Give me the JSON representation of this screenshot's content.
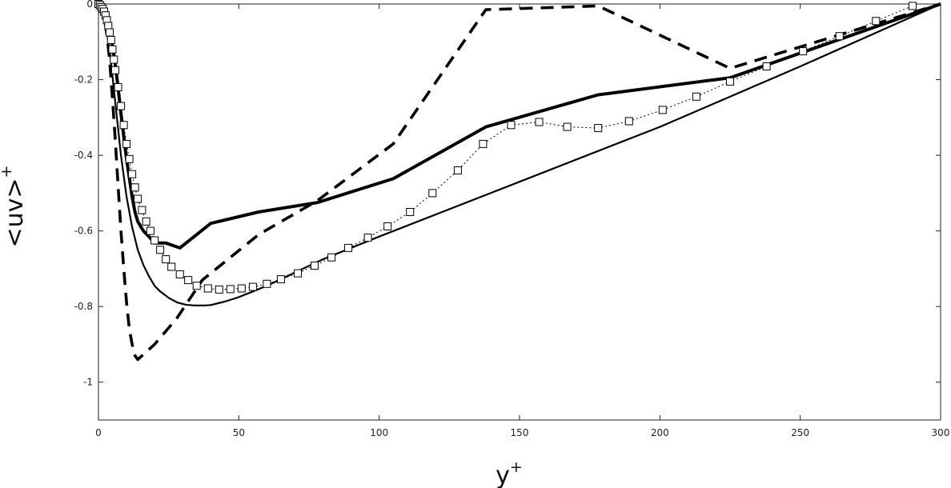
{
  "chart_data": {
    "type": "line",
    "xlabel": "y",
    "xlabel_sup": "+",
    "ylabel": "<uv>",
    "ylabel_sup": "+",
    "xlim": [
      0,
      300
    ],
    "ylim": [
      -1.1,
      0
    ],
    "xticks": [
      0,
      50,
      100,
      150,
      200,
      250,
      300
    ],
    "yticks": [
      0,
      -0.2,
      -0.4,
      -0.6,
      -0.8,
      -1
    ],
    "xtick_labels": [
      "0",
      "50",
      "100",
      "150",
      "200",
      "250",
      "300"
    ],
    "ytick_labels": [
      "0",
      "-0.2",
      "-0.4",
      "-0.6",
      "-0.8",
      "-1"
    ],
    "grid": false,
    "series": [
      {
        "style": "thin-solid",
        "x": [
          0,
          2,
          4,
          6,
          8,
          10,
          12,
          14,
          16,
          18,
          20,
          22,
          25,
          28,
          31,
          34,
          36,
          38,
          40,
          45,
          50,
          55,
          60,
          70,
          80,
          100,
          150,
          200,
          250,
          300
        ],
        "y": [
          0,
          -0.03,
          -0.12,
          -0.26,
          -0.4,
          -0.51,
          -0.59,
          -0.65,
          -0.69,
          -0.72,
          -0.745,
          -0.76,
          -0.777,
          -0.789,
          -0.795,
          -0.797,
          -0.797,
          -0.797,
          -0.796,
          -0.787,
          -0.775,
          -0.76,
          -0.745,
          -0.71,
          -0.675,
          -0.615,
          -0.47,
          -0.325,
          -0.165,
          0
        ]
      },
      {
        "style": "thick-solid",
        "x": [
          0,
          1,
          2,
          3,
          4,
          5,
          6,
          7,
          8,
          9,
          10,
          11,
          12,
          13,
          14,
          16,
          18,
          20,
          24,
          29,
          40,
          57,
          78,
          105,
          138,
          178,
          225,
          300
        ],
        "y": [
          0,
          -0.01,
          -0.02,
          -0.04,
          -0.07,
          -0.11,
          -0.16,
          -0.22,
          -0.29,
          -0.35,
          -0.41,
          -0.46,
          -0.51,
          -0.55,
          -0.575,
          -0.6,
          -0.615,
          -0.632,
          -0.632,
          -0.645,
          -0.58,
          -0.55,
          -0.525,
          -0.462,
          -0.325,
          -0.24,
          -0.195,
          0
        ]
      },
      {
        "style": "dashed",
        "x": [
          0,
          1,
          2,
          3,
          4,
          5,
          6,
          7,
          8,
          9,
          10,
          11,
          12,
          13,
          14,
          20,
          28,
          37,
          57,
          78,
          105,
          138,
          178,
          225,
          300
        ],
        "y": [
          0,
          -0.01,
          -0.03,
          -0.08,
          -0.15,
          -0.25,
          -0.36,
          -0.48,
          -0.6,
          -0.7,
          -0.79,
          -0.86,
          -0.9,
          -0.93,
          -0.94,
          -0.9,
          -0.83,
          -0.73,
          -0.61,
          -0.52,
          -0.37,
          -0.015,
          -0.005,
          -0.17,
          0
        ]
      },
      {
        "style": "dotted-square-markers",
        "x": [
          0,
          0.5,
          1,
          1.5,
          2,
          2.5,
          3,
          3.5,
          4,
          4.5,
          5,
          5.5,
          6,
          7,
          8,
          9,
          10,
          11,
          12,
          13,
          14,
          15.5,
          17,
          18.5,
          20,
          22,
          24,
          26,
          29,
          32,
          35,
          39,
          43,
          47,
          51,
          55,
          60,
          65,
          71,
          77,
          83,
          89,
          96,
          103,
          111,
          119,
          128,
          137,
          147,
          157,
          167,
          178,
          189,
          201,
          213,
          225,
          238,
          251,
          264,
          277,
          290
        ],
        "y": [
          0,
          -0.003,
          -0.008,
          -0.013,
          -0.02,
          -0.03,
          -0.043,
          -0.058,
          -0.075,
          -0.095,
          -0.12,
          -0.147,
          -0.175,
          -0.22,
          -0.27,
          -0.32,
          -0.37,
          -0.41,
          -0.45,
          -0.485,
          -0.515,
          -0.545,
          -0.575,
          -0.6,
          -0.625,
          -0.65,
          -0.675,
          -0.695,
          -0.715,
          -0.73,
          -0.745,
          -0.752,
          -0.755,
          -0.754,
          -0.752,
          -0.748,
          -0.74,
          -0.728,
          -0.712,
          -0.692,
          -0.67,
          -0.645,
          -0.618,
          -0.588,
          -0.55,
          -0.5,
          -0.44,
          -0.37,
          -0.32,
          -0.312,
          -0.325,
          -0.328,
          -0.31,
          -0.28,
          -0.245,
          -0.205,
          -0.165,
          -0.125,
          -0.085,
          -0.045,
          -0.005
        ]
      }
    ]
  }
}
